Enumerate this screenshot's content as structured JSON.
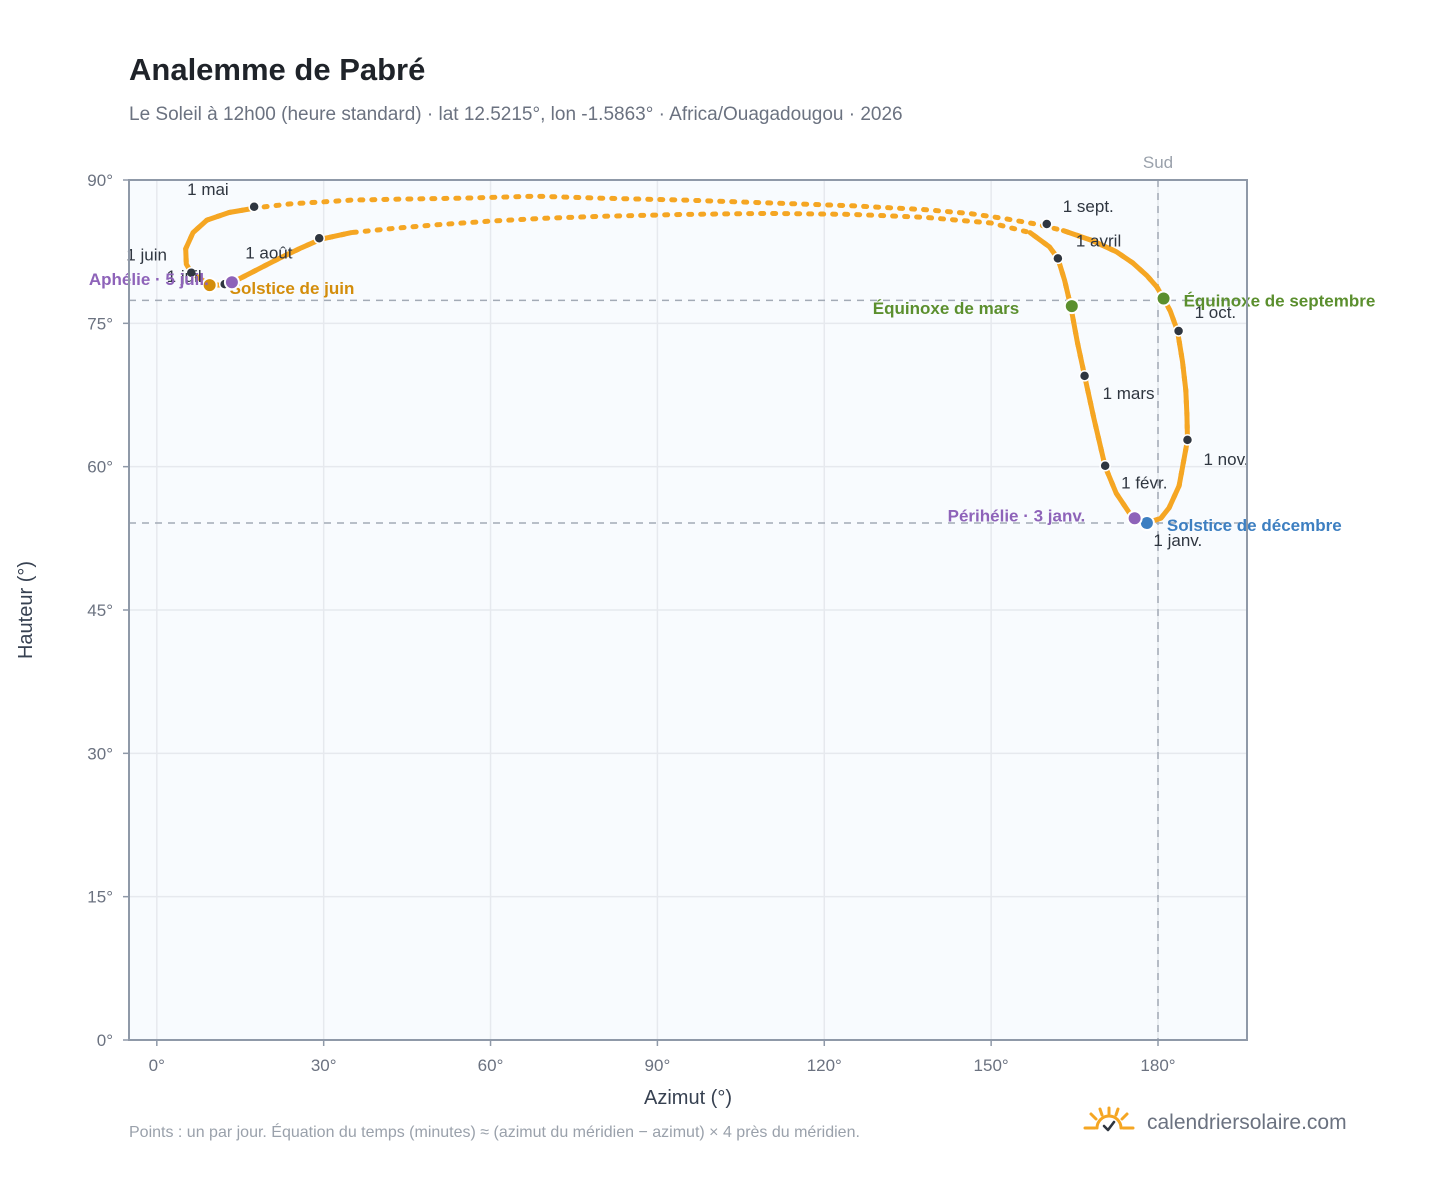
{
  "header": {
    "title": "Analemme de Pabré",
    "subtitle": "Le Soleil à 12h00 (heure standard) · lat 12.5215°, lon -1.5863° · Africa/Ouagadougou · 2026"
  },
  "footer": {
    "note": "Points : un par jour. Équation du temps (minutes) ≈ (azimut du méridien − azimut) × 4 près du méridien.",
    "brand": "calendriersolaire.com"
  },
  "colors": {
    "curve": "#f5a623",
    "month_marker": "#2f3640",
    "equinox": "#5b8f2e",
    "june_solstice": "#d38d0b",
    "december_solstice": "#3d7fc1",
    "aphelion_perihelion": "#8e63b9",
    "plot_background": "#f8fbfe",
    "grid": "#e6e9ee",
    "frame": "#8f99a8",
    "reference": "#a3abb6"
  },
  "chart_data": {
    "type": "scatter",
    "xlabel": "Azimut (°)",
    "ylabel": "Hauteur (°)",
    "xlim": [
      -5,
      196
    ],
    "ylim": [
      0,
      90
    ],
    "x_ticks": [
      {
        "value": 0,
        "label": "0°"
      },
      {
        "value": 30,
        "label": "30°"
      },
      {
        "value": 60,
        "label": "60°"
      },
      {
        "value": 90,
        "label": "90°"
      },
      {
        "value": 120,
        "label": "120°"
      },
      {
        "value": 150,
        "label": "150°"
      },
      {
        "value": 180,
        "label": "180°"
      }
    ],
    "y_ticks": [
      {
        "value": 0,
        "label": "0°"
      },
      {
        "value": 15,
        "label": "15°"
      },
      {
        "value": 30,
        "label": "30°"
      },
      {
        "value": 45,
        "label": "45°"
      },
      {
        "value": 60,
        "label": "60°"
      },
      {
        "value": 75,
        "label": "75°"
      },
      {
        "value": 90,
        "label": "90°"
      }
    ],
    "grid": true,
    "meridian": {
      "azimuth": 180,
      "label": "Sud"
    },
    "horizontal_refs": [
      {
        "altitude": 77.4
      },
      {
        "altitude": 54.1
      }
    ],
    "curve_path": [
      [
        185.3,
        62.8
      ],
      [
        185.2,
        65.5
      ],
      [
        185.0,
        68.0
      ],
      [
        184.4,
        71.0
      ],
      [
        183.5,
        74.2
      ],
      [
        182.2,
        76.3
      ],
      [
        181.0,
        77.6
      ],
      [
        179.8,
        78.8
      ],
      [
        178.0,
        80.0
      ],
      [
        175.5,
        81.3
      ],
      [
        172.5,
        82.5
      ],
      [
        168.0,
        83.7
      ],
      [
        163.0,
        84.7
      ],
      [
        158.0,
        85.4
      ],
      [
        152.0,
        86.0
      ],
      [
        146.0,
        86.5
      ],
      [
        138.0,
        86.9
      ],
      [
        125.0,
        87.3
      ],
      [
        110.0,
        87.6
      ],
      [
        95.0,
        87.9
      ],
      [
        80.0,
        88.1
      ],
      [
        68.0,
        88.3
      ],
      [
        55.0,
        88.1
      ],
      [
        44.0,
        88.0
      ],
      [
        35.0,
        87.9
      ],
      [
        24.0,
        87.5
      ],
      [
        18.0,
        87.1
      ],
      [
        13.0,
        86.6
      ],
      [
        9.0,
        85.8
      ],
      [
        6.5,
        84.5
      ],
      [
        5.2,
        82.8
      ],
      [
        5.3,
        81.2
      ],
      [
        6.2,
        80.3
      ],
      [
        8.5,
        79.4
      ],
      [
        11.0,
        79.0
      ],
      [
        13.0,
        79.1
      ],
      [
        15.0,
        79.7
      ],
      [
        18.0,
        80.6
      ],
      [
        22.0,
        81.8
      ],
      [
        26.0,
        82.9
      ],
      [
        29.5,
        83.8
      ],
      [
        35.0,
        84.5
      ],
      [
        42.0,
        84.9
      ],
      [
        50.0,
        85.3
      ],
      [
        60.0,
        85.7
      ],
      [
        70.0,
        86.0
      ],
      [
        80.0,
        86.2
      ],
      [
        95.0,
        86.4
      ],
      [
        110.0,
        86.5
      ],
      [
        125.0,
        86.4
      ],
      [
        138.0,
        86.1
      ],
      [
        150.0,
        85.5
      ],
      [
        157.0,
        84.5
      ],
      [
        160.5,
        83.0
      ],
      [
        162.0,
        81.8
      ],
      [
        163.2,
        79.5
      ],
      [
        164.3,
        76.8
      ],
      [
        165.5,
        73.0
      ],
      [
        166.8,
        69.5
      ],
      [
        168.5,
        65.0
      ],
      [
        170.5,
        60.0
      ],
      [
        172.5,
        57.2
      ],
      [
        175.5,
        54.6
      ],
      [
        178.0,
        54.1
      ],
      [
        180.5,
        54.6
      ],
      [
        182.0,
        55.7
      ],
      [
        183.8,
        58.0
      ],
      [
        185.3,
        62.8
      ]
    ],
    "month_markers": [
      {
        "label": "1 janv.",
        "azimuth": 178.1,
        "altitude": 54.0
      },
      {
        "label": "1 févr.",
        "azimuth": 170.5,
        "altitude": 60.1
      },
      {
        "label": "1 mars",
        "azimuth": 166.8,
        "altitude": 69.5
      },
      {
        "label": "1 avril",
        "azimuth": 162.0,
        "altitude": 81.8
      },
      {
        "label": "1 mai",
        "azimuth": 17.5,
        "altitude": 87.2
      },
      {
        "label": "1 juin",
        "azimuth": 6.2,
        "altitude": 80.3
      },
      {
        "label": "1 juil.",
        "azimuth": 12.2,
        "altitude": 79.1
      },
      {
        "label": "1 août",
        "azimuth": 29.2,
        "altitude": 83.9
      },
      {
        "label": "1 sept.",
        "azimuth": 160.0,
        "altitude": 85.4
      },
      {
        "label": "1 oct.",
        "azimuth": 183.7,
        "altitude": 74.2
      },
      {
        "label": "1 nov.",
        "azimuth": 185.3,
        "altitude": 62.8
      }
    ],
    "events": [
      {
        "label": "Équinoxe de mars",
        "azimuth": 164.5,
        "altitude": 76.8,
        "kind": "equinox"
      },
      {
        "label": "Équinoxe de septembre",
        "azimuth": 181.0,
        "altitude": 77.6,
        "kind": "equinox"
      },
      {
        "label": "Solstice de juin",
        "azimuth": 9.5,
        "altitude": 79.0,
        "kind": "june_solstice"
      },
      {
        "label": "Solstice de décembre",
        "azimuth": 178.0,
        "altitude": 54.1,
        "kind": "december_solstice"
      },
      {
        "label": "Aphélie · 5 juil.",
        "azimuth": 13.5,
        "altitude": 79.3,
        "kind": "aphelion_perihelion"
      },
      {
        "label": "Périhélie · 3 janv.",
        "azimuth": 175.8,
        "altitude": 54.6,
        "kind": "aphelion_perihelion"
      }
    ]
  }
}
